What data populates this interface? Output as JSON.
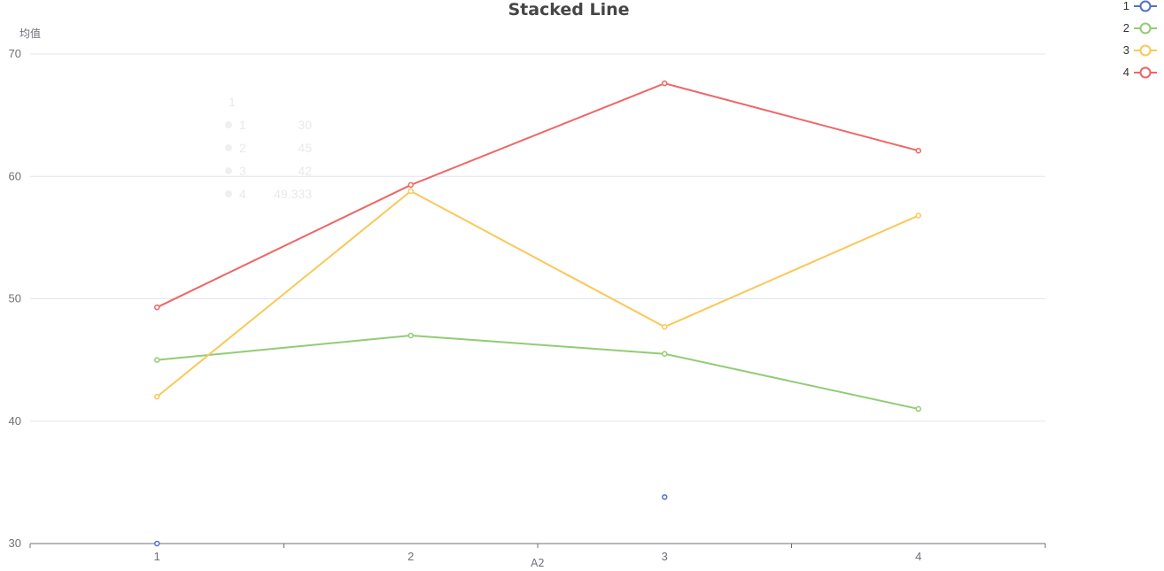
{
  "chart_data": {
    "type": "line",
    "title": "Stacked Line",
    "xlabel": "A2",
    "ylabel": "均值",
    "categories": [
      "1",
      "2",
      "3",
      "4"
    ],
    "ylim": [
      30,
      70
    ],
    "yticks": [
      30,
      40,
      50,
      60,
      70
    ],
    "grid": true,
    "legend_position": "top-right",
    "series": [
      {
        "name": "1",
        "color": "#5470c6",
        "values": [
          30,
          null,
          33.8,
          null
        ]
      },
      {
        "name": "2",
        "color": "#91cc75",
        "values": [
          45,
          47,
          45.5,
          41
        ]
      },
      {
        "name": "3",
        "color": "#fac858",
        "values": [
          42,
          58.8,
          47.7,
          56.8
        ]
      },
      {
        "name": "4",
        "color": "#ee6666",
        "values": [
          49.3,
          59.3,
          67.6,
          62.1
        ]
      }
    ],
    "tooltip_ghost": {
      "header": "1",
      "rows": [
        {
          "name": "1",
          "value": "30"
        },
        {
          "name": "2",
          "value": "45"
        },
        {
          "name": "3",
          "value": "42"
        },
        {
          "name": "4",
          "value": "49.333"
        }
      ]
    }
  }
}
